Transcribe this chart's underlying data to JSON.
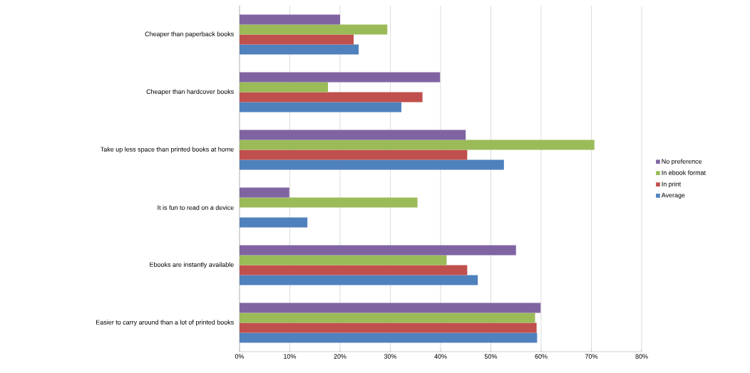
{
  "chart_data": {
    "type": "bar",
    "orientation": "horizontal",
    "categories": [
      "Cheaper than paperback books",
      "Cheaper than hardcover books",
      "Take up less space than printed books at home",
      "It is fun to read on a device",
      "Ebooks are instantly available",
      "Easier to carry around than a lot of printed books"
    ],
    "series": [
      {
        "name": "Average",
        "color": "#4f81bd",
        "values": [
          23.7,
          32.2,
          52.6,
          13.5,
          47.4,
          59.2
        ]
      },
      {
        "name": "In print",
        "color": "#c0504d",
        "values": [
          22.7,
          36.4,
          45.3,
          0,
          45.3,
          59.1
        ]
      },
      {
        "name": "In ebook format",
        "color": "#9bbb59",
        "values": [
          29.4,
          17.6,
          70.6,
          35.4,
          41.2,
          58.8
        ]
      },
      {
        "name": "No preference",
        "color": "#8064a2",
        "values": [
          20.0,
          39.9,
          45.0,
          9.9,
          55.0,
          59.9
        ]
      }
    ],
    "xlim": [
      0,
      80
    ],
    "xticks": [
      {
        "value": 0,
        "label": "0%"
      },
      {
        "value": 10,
        "label": "10%"
      },
      {
        "value": 20,
        "label": "20%"
      },
      {
        "value": 30,
        "label": "30%"
      },
      {
        "value": 40,
        "label": "40%"
      },
      {
        "value": 50,
        "label": "50%"
      },
      {
        "value": 60,
        "label": "60%"
      },
      {
        "value": 70,
        "label": "70%"
      },
      {
        "value": 80,
        "label": "80%"
      }
    ],
    "grid": "x",
    "legend": "right"
  }
}
